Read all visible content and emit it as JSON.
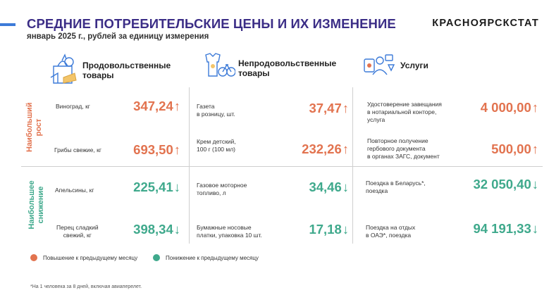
{
  "header": {
    "title": "СРЕДНИЕ ПОТРЕБИТЕЛЬСКИЕ ЦЕНЫ И ИХ ИЗМЕНЕНИЕ",
    "subtitle": "январь 2025 г., рублей за единицу измерения",
    "brand": "КРАСНОЯРСКСТАТ"
  },
  "columns": {
    "food": {
      "label_line1": "Продовольственные",
      "label_line2": "товары",
      "icon": "grocery-bag-icon"
    },
    "nonfood": {
      "label_line1": "Непродовольственные",
      "label_line2": "товары",
      "icon": "clothes-bicycle-icon"
    },
    "services": {
      "label": "Услуги",
      "icon": "services-people-icon"
    }
  },
  "rows": {
    "growth": {
      "label_line1": "Наибольший",
      "label_line2": "рост"
    },
    "decline": {
      "label_line1": "Наибольшее",
      "label_line2": "снижение"
    }
  },
  "cells": {
    "g1": {
      "food": {
        "name": "Виноград, кг",
        "value": "347,24",
        "arrow": "↑"
      },
      "nonfood": {
        "name_line1": "Газета",
        "name_line2": "в розницу, шт.",
        "value": "37,47",
        "arrow": "↑"
      },
      "services": {
        "name_line1": "Удостоверение завещания",
        "name_line2": "в нотариальной конторе,",
        "name_line3": "услуга",
        "value": "4 000,00",
        "arrow": "↑"
      }
    },
    "g2": {
      "food": {
        "name": "Грибы свежие, кг",
        "value": "693,50",
        "arrow": "↑"
      },
      "nonfood": {
        "name_line1": "Крем детский,",
        "name_line2": "100 г (100 мл)",
        "value": "232,26",
        "arrow": "↑"
      },
      "services": {
        "name_line1": "Повторное получение",
        "name_line2": "гербового документа",
        "name_line3": "в органах ЗАГС, документ",
        "value": "500,00",
        "arrow": "↑"
      }
    },
    "d1": {
      "food": {
        "name": "Апельсины, кг",
        "value": "225,41",
        "arrow": "↓"
      },
      "nonfood": {
        "name_line1": "Газовое моторное",
        "name_line2": "топливо, л",
        "value": "34,46",
        "arrow": "↓"
      },
      "services": {
        "name_line1": "Поездка в Беларусь*,",
        "name_line2": "поездка",
        "value": "32 050,40",
        "arrow": "↓"
      }
    },
    "d2": {
      "food": {
        "name_line1": "Перец сладкий",
        "name_line2": "свежий, кг",
        "value": "398,34",
        "arrow": "↓"
      },
      "nonfood": {
        "name_line1": "Бумажные носовые",
        "name_line2": "платки, упаковка 10 шт.",
        "value": "17,18",
        "arrow": "↓"
      },
      "services": {
        "name_line1": "Поездка на отдых",
        "name_line2": "в ОАЭ*, поездка",
        "value": "94 191,33",
        "arrow": "↓"
      }
    }
  },
  "legend": {
    "up": {
      "label": "Повышение к предыдущему месяцу",
      "color": "#e2734f"
    },
    "down": {
      "label": "Понижение к предыдущему месяцу",
      "color": "#3fa98c"
    }
  },
  "footnote": "*На 1 человека за 8 дней, включая авиаперелет.",
  "colors": {
    "title": "#3b2d86",
    "up": "#e2734f",
    "down": "#3fa98c",
    "accent": "#3d7bd8"
  }
}
